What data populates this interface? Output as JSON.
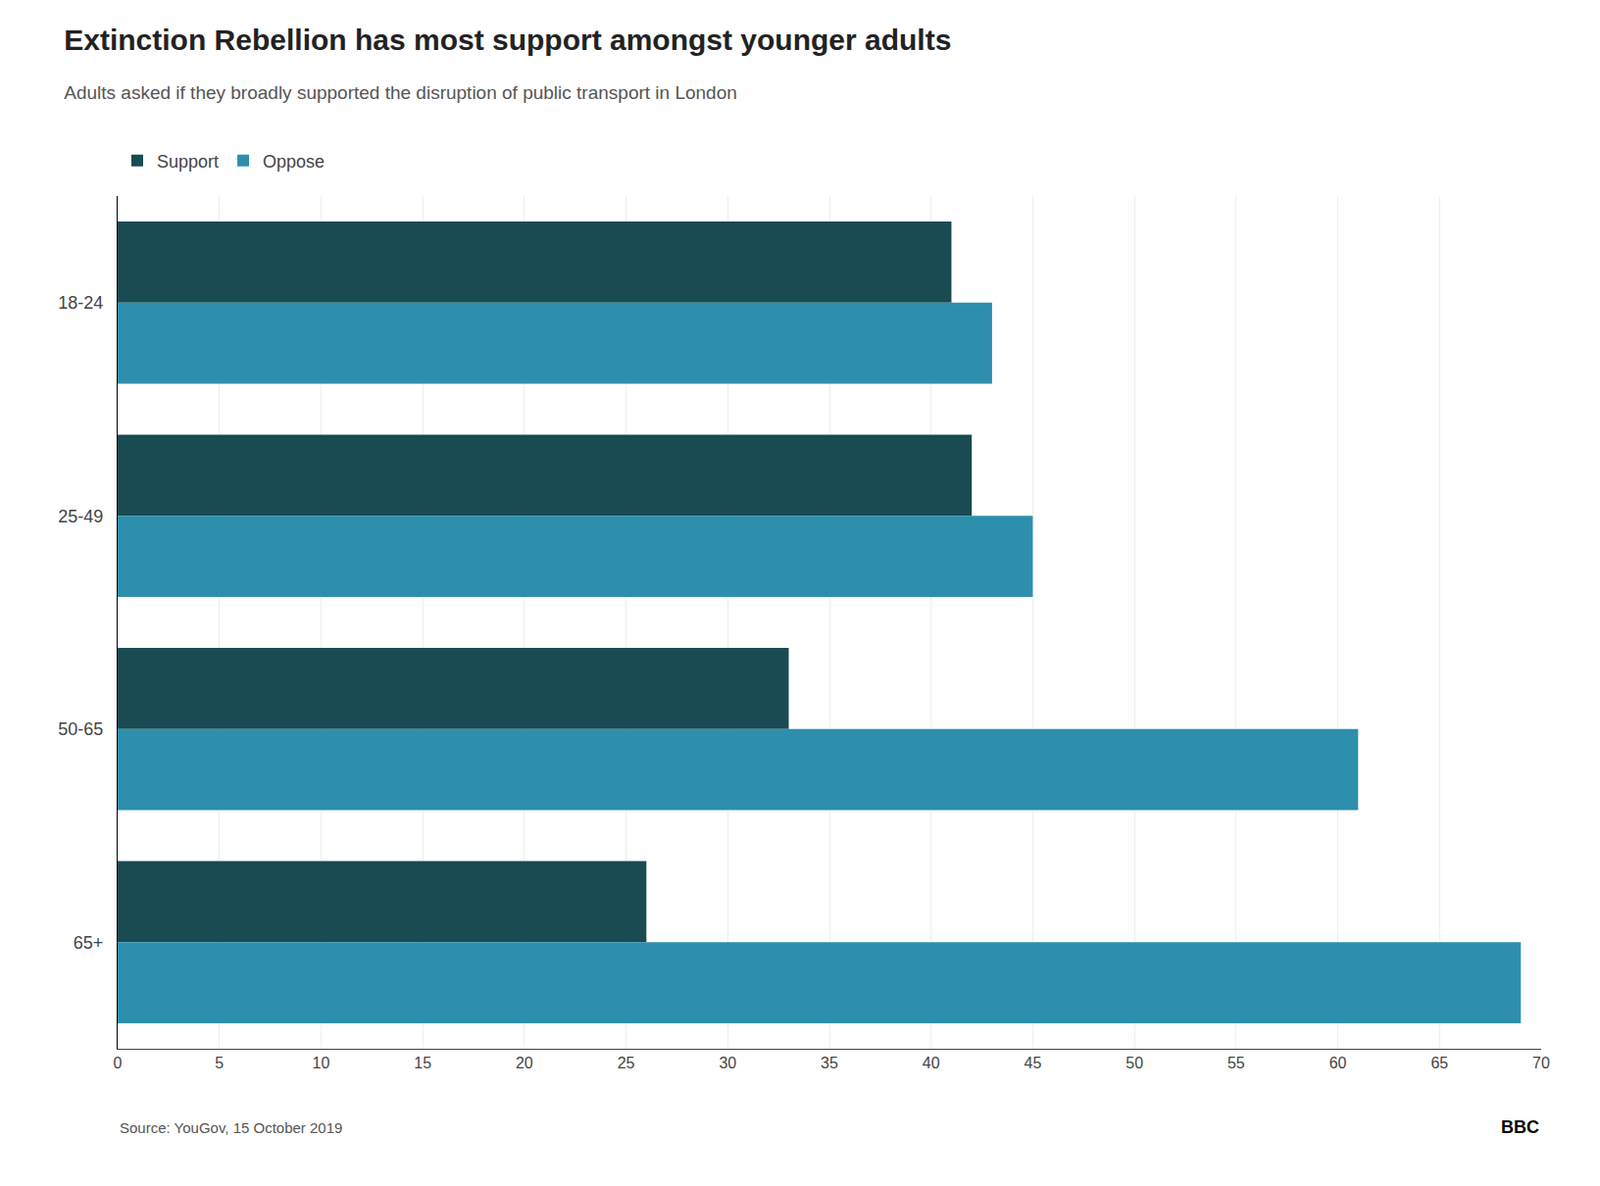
{
  "chart_data": {
    "type": "bar",
    "orientation": "horizontal",
    "title": "Extinction Rebellion has most support amongst younger adults",
    "subtitle": "Adults asked if they broadly supported the disruption of public transport in London",
    "categories": [
      "18-24",
      "25-49",
      "50-65",
      "65+"
    ],
    "series": [
      {
        "name": "Support",
        "color": "#1a4a52",
        "values": [
          41,
          42,
          33,
          26
        ]
      },
      {
        "name": "Oppose",
        "color": "#2e8fad",
        "values": [
          43,
          45,
          61,
          69
        ]
      }
    ],
    "xlim": [
      0,
      70
    ],
    "xticks": [
      0,
      5,
      10,
      15,
      20,
      25,
      30,
      35,
      40,
      45,
      50,
      55,
      60,
      65,
      70
    ],
    "grid": true,
    "legend": "top left",
    "annotations": [
      "Source: YouGov, 15 October 2019",
      "BBC"
    ]
  }
}
